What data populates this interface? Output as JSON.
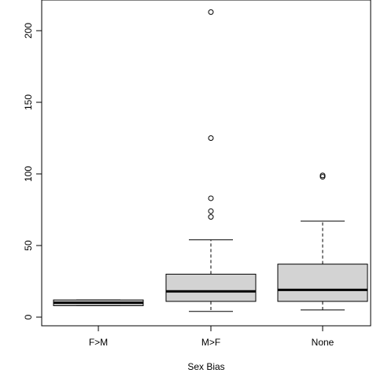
{
  "chart_data": {
    "type": "boxplot",
    "title": "",
    "xlabel": "Sex Bias",
    "ylabel": "",
    "ylim": [
      0,
      213
    ],
    "yticks": [
      0,
      50,
      100,
      150,
      200
    ],
    "box_fill": "#d3d3d3",
    "categories": [
      "F>M",
      "M>F",
      "None"
    ],
    "boxes": [
      {
        "category": "F>M",
        "whisker_low": 8,
        "q1": 8,
        "median": 10,
        "q3": 12,
        "whisker_high": 12,
        "outliers": []
      },
      {
        "category": "M>F",
        "whisker_low": 4,
        "q1": 11,
        "median": 18,
        "q3": 30,
        "whisker_high": 54,
        "outliers": [
          70,
          74,
          83,
          125,
          213
        ]
      },
      {
        "category": "None",
        "whisker_low": 5,
        "q1": 11,
        "median": 19,
        "q3": 37,
        "whisker_high": 67,
        "outliers": [
          98,
          99
        ]
      }
    ]
  }
}
